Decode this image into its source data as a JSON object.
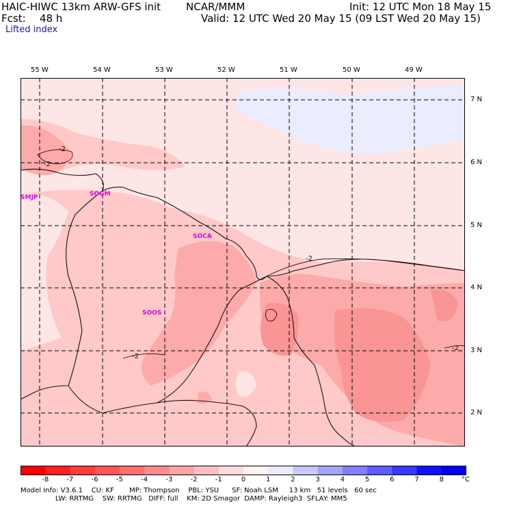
{
  "header": {
    "model": "HAIC-HIWC 13km ARW-GFS init",
    "org": "NCAR/MMM",
    "init": "Init: 12 UTC Mon 18 May 15",
    "fcst_label": "Fcst:",
    "fcst_value": "48 h",
    "valid": "Valid: 12 UTC Wed 20 May 15 (09 LST Wed 20 May 15)",
    "field": "Lifted index"
  },
  "map": {
    "lon_labels": [
      "55 W",
      "54 W",
      "53 W",
      "52 W",
      "51 W",
      "50 W",
      "49 W"
    ],
    "lat_labels": [
      "7 N",
      "6 N",
      "5 N",
      "4 N",
      "3 N",
      "2 N"
    ],
    "stations": [
      "SMJP",
      "SOGM",
      "SOCA",
      "SOOS"
    ],
    "contour_labels": [
      "-2",
      "-2",
      "-2",
      "-2",
      "-2"
    ],
    "colors": {
      "background": "#ffe6e6",
      "light_blue": "#ececff",
      "pink_mid": "#ffc9c9",
      "pink_dark": "#fdaaaa",
      "pink_core": "#f99595",
      "coast": "#111111",
      "grid": "#000000"
    }
  },
  "scale": {
    "labels": [
      "-8",
      "-7",
      "-6",
      "-5",
      "-4",
      "-3",
      "-2",
      "-1",
      "0",
      "1",
      "2",
      "3",
      "4",
      "5",
      "6",
      "7",
      "8"
    ],
    "unit": "°C",
    "colors": [
      "#ff0000",
      "#ff2020",
      "#ff3b3b",
      "#ff5555",
      "#ff6f6f",
      "#ff8a8a",
      "#ffa5a5",
      "#ffc0c0",
      "#ffdcdc",
      "#fff2f2",
      "#ececff",
      "#c8c8ff",
      "#a4a4ff",
      "#8080ff",
      "#5c5cff",
      "#3838ff",
      "#1010ff",
      "#0000ee"
    ]
  },
  "footer": {
    "line1": "Model Info: V3.6.1    CU: KF       MP: Thompson    PBL: YSU      SF: Noah LSM     13 km   51 levels   60 sec",
    "line2": "                LW: RRTMG    SW: RRTMG   DIFF: full    KM: 2D Smagor  DAMP: Rayleigh3  SFLAY: MM5"
  }
}
